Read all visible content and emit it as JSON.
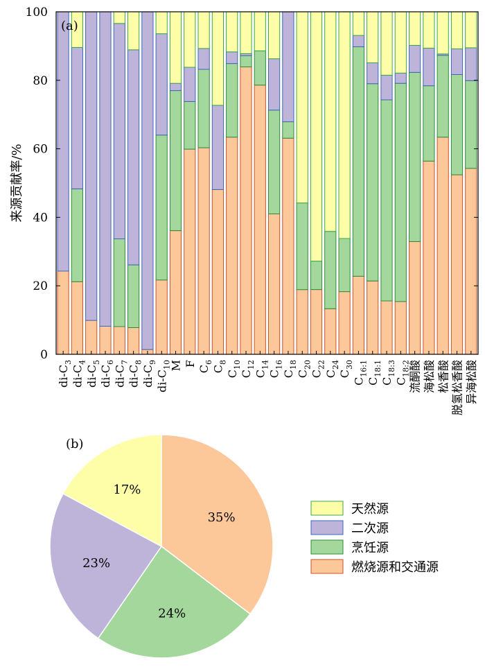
{
  "chart_data": [
    {
      "type": "bar",
      "stacked": true,
      "panel_label": "(a)",
      "ylabel": "来源贡献率/%",
      "ylim": [
        0,
        100
      ],
      "yticks": [
        0,
        20,
        40,
        60,
        80,
        100
      ],
      "categories": [
        {
          "base": "di-C",
          "sub": "3"
        },
        {
          "base": "di-C",
          "sub": "4"
        },
        {
          "base": "di-C",
          "sub": "5"
        },
        {
          "base": "di-C",
          "sub": "6"
        },
        {
          "base": "di-C",
          "sub": "7"
        },
        {
          "base": "di-C",
          "sub": "8"
        },
        {
          "base": "di-C",
          "sub": "9"
        },
        {
          "base": "di-C",
          "sub": "10"
        },
        {
          "base": "M",
          "sub": ""
        },
        {
          "base": "F",
          "sub": ""
        },
        {
          "base": "C",
          "sub": "6"
        },
        {
          "base": "C",
          "sub": "8"
        },
        {
          "base": "C",
          "sub": "10"
        },
        {
          "base": "C",
          "sub": "12"
        },
        {
          "base": "C",
          "sub": "14"
        },
        {
          "base": "C",
          "sub": "16"
        },
        {
          "base": "C",
          "sub": "18"
        },
        {
          "base": "C",
          "sub": "20"
        },
        {
          "base": "C",
          "sub": "22"
        },
        {
          "base": "C",
          "sub": "24"
        },
        {
          "base": "C",
          "sub": "30"
        },
        {
          "base": "C",
          "sub": "16:1"
        },
        {
          "base": "C",
          "sub": "18:1"
        },
        {
          "base": "C",
          "sub": "18:3"
        },
        {
          "base": "C",
          "sub": "18:2"
        },
        {
          "base": "流酮酸",
          "sub": ""
        },
        {
          "base": "海松酸",
          "sub": ""
        },
        {
          "base": "松香酸",
          "sub": ""
        },
        {
          "base": "脱氢松香酸",
          "sub": ""
        },
        {
          "base": "异海松酸",
          "sub": ""
        }
      ],
      "series": [
        {
          "name": "燃烧源和交通源",
          "fill": "#fcc89a",
          "stroke": "#c8532c",
          "values": [
            24.3,
            21.2,
            9.9,
            8.2,
            8.1,
            7.8,
            1.4,
            21.7,
            36.1,
            59.9,
            60.3,
            48.1,
            63.4,
            83.9,
            78.6,
            41.0,
            63.1,
            18.9,
            18.9,
            13.3,
            18.3,
            22.8,
            21.4,
            15.6,
            15.4,
            32.9,
            56.4,
            63.4,
            52.4,
            54.3
          ]
        },
        {
          "name": "烹饪源",
          "fill": "#a4d79c",
          "stroke": "#2e8b3d",
          "values": [
            0,
            27.1,
            0,
            0,
            25.6,
            18.3,
            0,
            42.3,
            40.9,
            13.9,
            22.9,
            0,
            21.5,
            3.3,
            10.0,
            30.3,
            4.8,
            25.3,
            8.3,
            22.6,
            15.5,
            67.0,
            57.6,
            58.7,
            63.7,
            49.4,
            22.0,
            23.9,
            29.3,
            25.6
          ]
        },
        {
          "name": "二次源",
          "fill": "#beb3d8",
          "stroke": "#3b68b8",
          "values": [
            75.7,
            41.3,
            90.1,
            91.8,
            62.9,
            62.8,
            98.6,
            29.6,
            2.1,
            10.0,
            6.1,
            24.6,
            3.4,
            0.6,
            0,
            15.0,
            32.1,
            0,
            0,
            0,
            0,
            3.3,
            6.1,
            7.2,
            3.0,
            7.9,
            11.0,
            0.4,
            7.5,
            9.6
          ]
        },
        {
          "name": "天然源",
          "fill": "#fffea8",
          "stroke": "#3aa84a",
          "values": [
            0,
            10.4,
            0,
            0,
            3.4,
            11.1,
            0,
            6.4,
            20.9,
            16.2,
            10.7,
            27.3,
            11.7,
            12.2,
            11.4,
            13.7,
            0,
            55.8,
            72.8,
            64.1,
            66.2,
            6.9,
            14.9,
            18.5,
            17.9,
            9.8,
            10.6,
            12.3,
            10.8,
            10.5
          ]
        }
      ]
    },
    {
      "type": "pie",
      "panel_label": "(b)",
      "slices": [
        {
          "name": "燃烧源和交通源",
          "value": 35,
          "label": "35%",
          "color": "#fcc89a"
        },
        {
          "name": "烹饪源",
          "value": 24,
          "label": "24%",
          "color": "#a4d79c"
        },
        {
          "name": "二次源",
          "value": 23,
          "label": "23%",
          "color": "#beb3d8"
        },
        {
          "name": "天然源",
          "value": 17,
          "label": "17%",
          "color": "#fffea8"
        }
      ]
    }
  ],
  "legend": [
    {
      "label": "天然源",
      "fill": "#fffea8",
      "stroke": "#3aa84a"
    },
    {
      "label": "二次源",
      "fill": "#beb3d8",
      "stroke": "#3b68b8"
    },
    {
      "label": "烹饪源",
      "fill": "#a4d79c",
      "stroke": "#2e8b3d"
    },
    {
      "label": "燃烧源和交通源",
      "fill": "#fcc89a",
      "stroke": "#c8532c"
    }
  ]
}
